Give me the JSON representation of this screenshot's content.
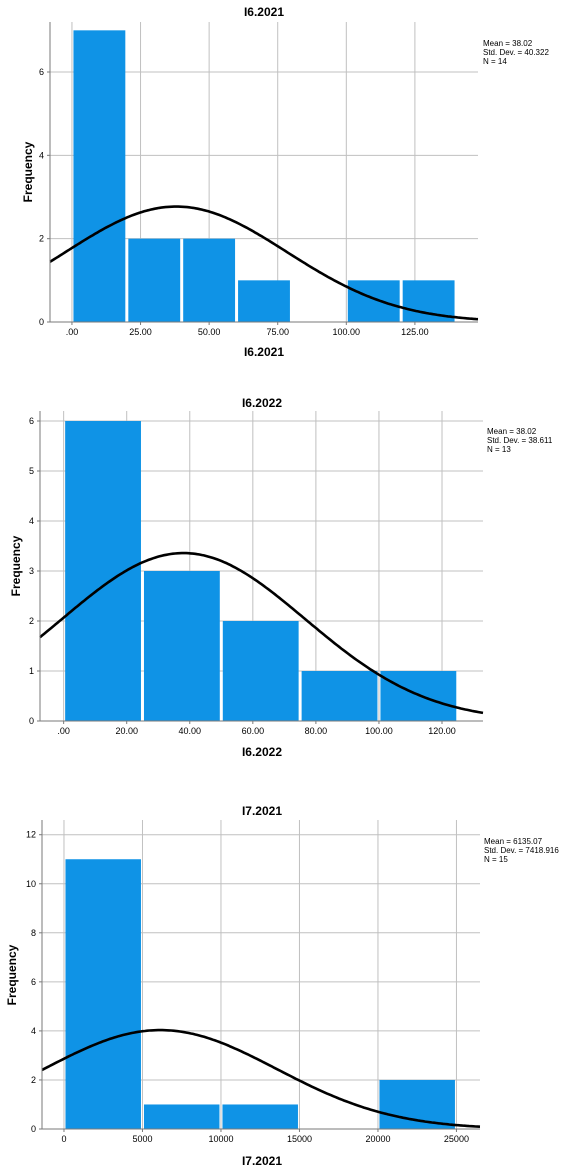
{
  "chart_data": [
    {
      "type": "bar",
      "title": "I6.2021",
      "xlabel": "I6.2021",
      "ylabel": "Frequency",
      "bins": [
        [
          0,
          20
        ],
        [
          20,
          40
        ],
        [
          40,
          60
        ],
        [
          60,
          80
        ],
        [
          80,
          100
        ],
        [
          100,
          120
        ],
        [
          120,
          140
        ]
      ],
      "values": [
        7,
        2,
        2,
        1,
        0,
        1,
        1
      ],
      "x_ticks": [
        0,
        25,
        50,
        75,
        100,
        125
      ],
      "x_tick_labels": [
        ".00",
        "25.00",
        "50.00",
        "75.00",
        "100.00",
        "125.00"
      ],
      "xlim": [
        -8,
        148
      ],
      "ylim": [
        0,
        7.2
      ],
      "y_ticks": [
        0,
        2,
        4,
        6
      ],
      "grid": true,
      "curve": "normal",
      "stats": {
        "mean": 38.02,
        "sd": 40.322,
        "n": 14
      },
      "stats_labels": [
        "Mean = 38.02",
        "Std. Dev. = 40.322",
        "N = 14"
      ],
      "stats_position": "top-right"
    },
    {
      "type": "bar",
      "title": "I6.2022",
      "xlabel": "I6.2022",
      "ylabel": "Frequency",
      "bins": [
        [
          0,
          25
        ],
        [
          25,
          50
        ],
        [
          50,
          75
        ],
        [
          75,
          100
        ],
        [
          100,
          125
        ]
      ],
      "values": [
        6,
        3,
        2,
        1,
        1
      ],
      "x_ticks": [
        0,
        20,
        40,
        60,
        80,
        100,
        120
      ],
      "x_tick_labels": [
        ".00",
        "20.00",
        "40.00",
        "60.00",
        "80.00",
        "100.00",
        "120.00"
      ],
      "xlim": [
        -7.5,
        133
      ],
      "ylim": [
        0,
        6.2
      ],
      "y_ticks": [
        0,
        1,
        2,
        3,
        4,
        5,
        6
      ],
      "grid": true,
      "curve": "normal",
      "stats": {
        "mean": 38.02,
        "sd": 38.611,
        "n": 13
      },
      "stats_labels": [
        "Mean = 38.02",
        "Std. Dev. = 38.611",
        "N = 13"
      ],
      "stats_position": "top-right"
    },
    {
      "type": "bar",
      "title": "I7.2021",
      "xlabel": "I7.2021",
      "ylabel": "Frequency",
      "bins": [
        [
          0,
          5000
        ],
        [
          5000,
          10000
        ],
        [
          10000,
          15000
        ],
        [
          15000,
          20000
        ],
        [
          20000,
          25000
        ]
      ],
      "values": [
        11,
        1,
        1,
        0,
        2
      ],
      "x_ticks": [
        0,
        5000,
        10000,
        15000,
        20000,
        25000
      ],
      "x_tick_labels": [
        "0",
        "5000",
        "10000",
        "15000",
        "20000",
        "25000"
      ],
      "xlim": [
        -1400,
        26500
      ],
      "ylim": [
        0,
        12.6
      ],
      "y_ticks": [
        0,
        2,
        4,
        6,
        8,
        10,
        12
      ],
      "grid": true,
      "curve": "normal",
      "stats": {
        "mean": 6135.07,
        "sd": 7418.916,
        "n": 15
      },
      "stats_labels": [
        "Mean = 6135.07",
        "Std. Dev. = 7418.916",
        "N = 15"
      ],
      "stats_position": "top-right"
    }
  ],
  "colors": {
    "bar": "#0f93e6",
    "curve": "#000000",
    "grid": "#c0c0c0",
    "axis": "#7a7a7a"
  }
}
